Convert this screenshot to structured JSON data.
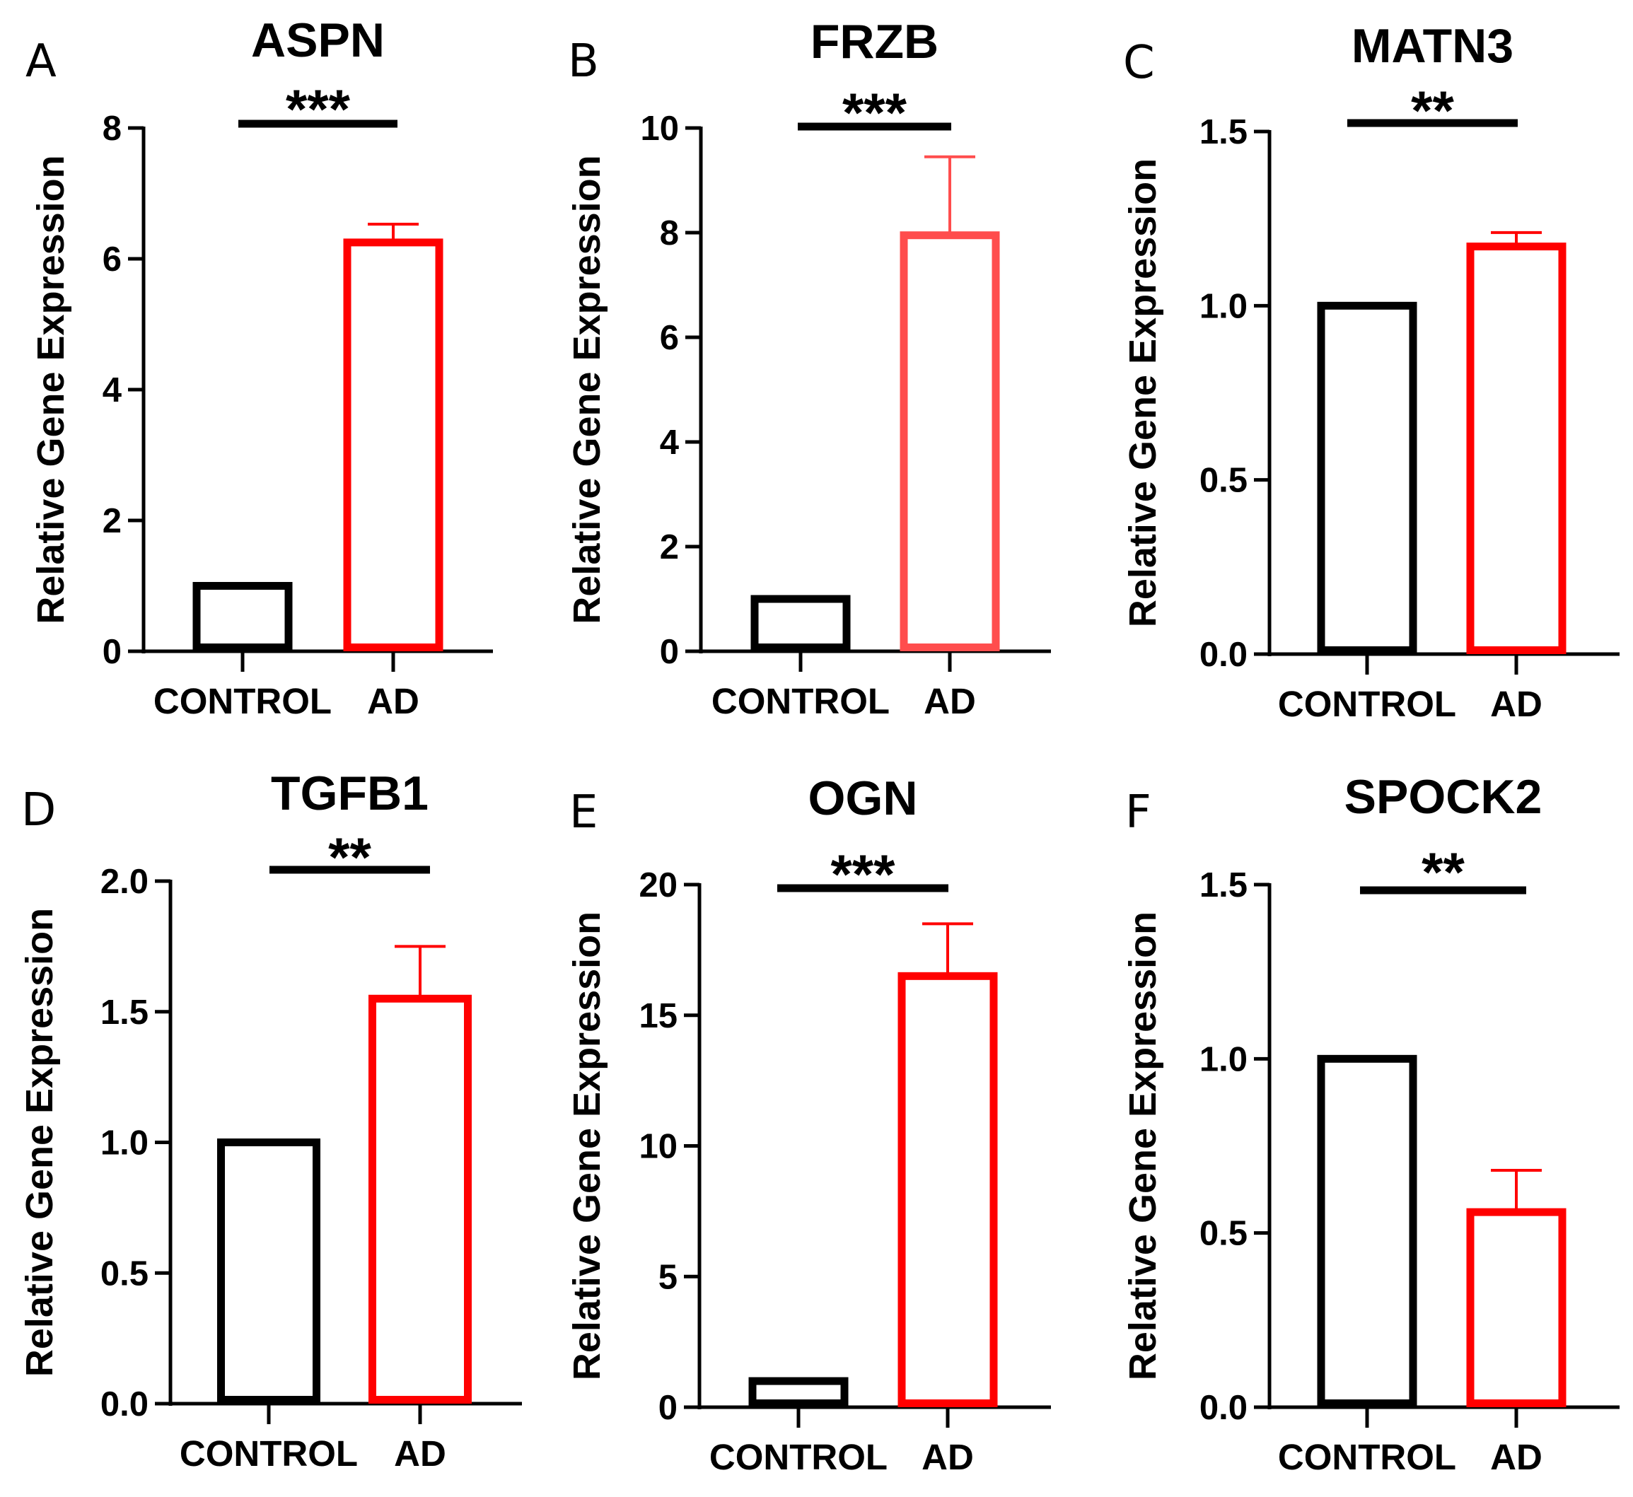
{
  "colors": {
    "control": "#000000",
    "ad": "#ff0000",
    "ad_light": "#ff4d4d",
    "axis": "#000000"
  },
  "chart_data": [
    {
      "panel": "A",
      "type": "bar",
      "title": "ASPN",
      "significance": "***",
      "ylabel": "Relative Gene Expression",
      "categories": [
        "CONTROL",
        "AD"
      ],
      "values": [
        1,
        6.25
      ],
      "errors": [
        0,
        0.28
      ],
      "ylim": [
        0,
        8
      ],
      "yticks": [
        "0",
        "2",
        "4",
        "6",
        "8"
      ],
      "bar_colors": [
        "#000000",
        "#ff0000"
      ],
      "grid": false
    },
    {
      "panel": "B",
      "type": "bar",
      "title": "FRZB",
      "significance": "***",
      "ylabel": "Relative Gene Expression",
      "categories": [
        "CONTROL",
        "AD"
      ],
      "values": [
        1,
        7.95
      ],
      "errors": [
        0,
        1.5
      ],
      "ylim": [
        0,
        10
      ],
      "yticks": [
        "0",
        "2",
        "4",
        "6",
        "8",
        "10"
      ],
      "bar_colors": [
        "#000000",
        "#ff4d4d"
      ],
      "grid": false
    },
    {
      "panel": "C",
      "type": "bar",
      "title": "MATN3",
      "significance": "**",
      "ylabel": "Relative Gene Expression",
      "categories": [
        "CONTROL",
        "AD"
      ],
      "values": [
        1,
        1.17
      ],
      "errors": [
        0,
        0.04
      ],
      "ylim": [
        0,
        1.5
      ],
      "yticks": [
        "0.0",
        "0.5",
        "1.0",
        "1.5"
      ],
      "bar_colors": [
        "#000000",
        "#ff0000"
      ],
      "grid": false
    },
    {
      "panel": "D",
      "type": "bar",
      "title": "TGFB1",
      "significance": "**",
      "ylabel": "Relative Gene Expression",
      "categories": [
        "CONTROL",
        "AD"
      ],
      "values": [
        1,
        1.55
      ],
      "errors": [
        0,
        0.2
      ],
      "ylim": [
        0,
        2
      ],
      "yticks": [
        "0.0",
        "0.5",
        "1.0",
        "1.5",
        "2.0"
      ],
      "bar_colors": [
        "#000000",
        "#ff0000"
      ],
      "grid": false
    },
    {
      "panel": "E",
      "type": "bar",
      "title": "OGN",
      "significance": "***",
      "ylabel": "Relative Gene Expression",
      "categories": [
        "CONTROL",
        "AD"
      ],
      "values": [
        1,
        16.5
      ],
      "errors": [
        0,
        2.0
      ],
      "ylim": [
        0,
        20
      ],
      "yticks": [
        "0",
        "5",
        "10",
        "15",
        "20"
      ],
      "bar_colors": [
        "#000000",
        "#ff0000"
      ],
      "grid": false
    },
    {
      "panel": "F",
      "type": "bar",
      "title": "SPOCK2",
      "significance": "**",
      "ylabel": "Relative Gene Expression",
      "categories": [
        "CONTROL",
        "AD"
      ],
      "values": [
        1,
        0.56
      ],
      "errors": [
        0,
        0.12
      ],
      "ylim": [
        0,
        1.5
      ],
      "yticks": [
        "0.0",
        "0.5",
        "1.0",
        "1.5"
      ],
      "bar_colors": [
        "#000000",
        "#ff0000"
      ],
      "grid": false
    }
  ]
}
